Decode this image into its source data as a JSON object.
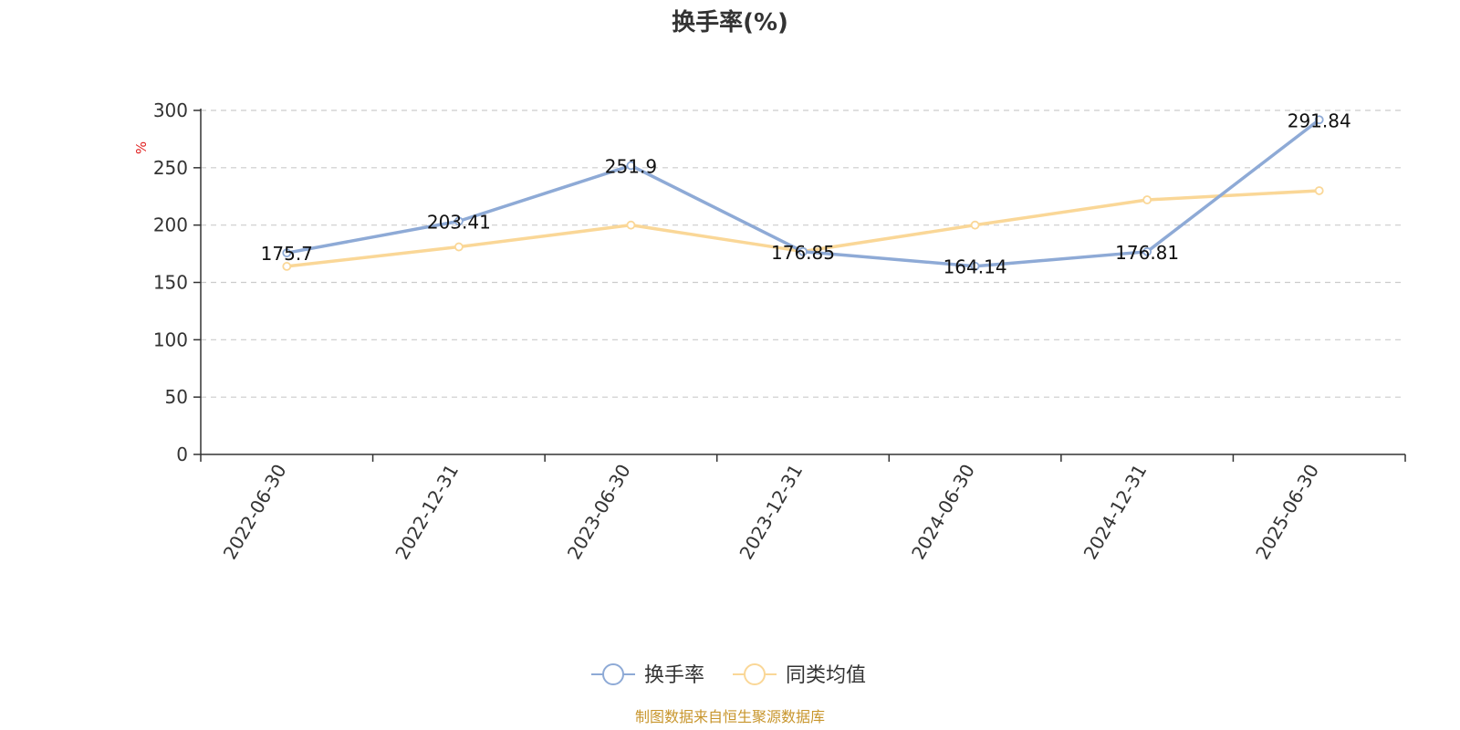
{
  "chart_data": {
    "type": "line",
    "title": "换手率(%)",
    "ylabel": "%",
    "categories": [
      "2022-06-30",
      "2022-12-31",
      "2023-06-30",
      "2023-12-31",
      "2024-06-30",
      "2024-12-31",
      "2025-06-30"
    ],
    "ylim": [
      0,
      300
    ],
    "yticks": [
      0,
      50,
      100,
      150,
      200,
      250,
      300
    ],
    "grid": true,
    "legend_position": "bottom",
    "series": [
      {
        "name": "换手率",
        "values": [
          175.7,
          203.41,
          251.9,
          176.85,
          164.14,
          176.81,
          291.84
        ],
        "labels": [
          "175.7",
          "203.41",
          "251.9",
          "176.85",
          "164.14",
          "176.81",
          "291.84"
        ],
        "color": "#8eaad6"
      },
      {
        "name": "同类均值",
        "values": [
          164,
          181,
          200,
          177,
          200,
          222,
          230
        ],
        "color": "#fad797"
      }
    ]
  },
  "source": "制图数据来自恒生聚源数据库",
  "colors": {
    "axis": "#333333",
    "grid": "#cccccc",
    "unit": "#e02020",
    "source": "#c8962d"
  }
}
